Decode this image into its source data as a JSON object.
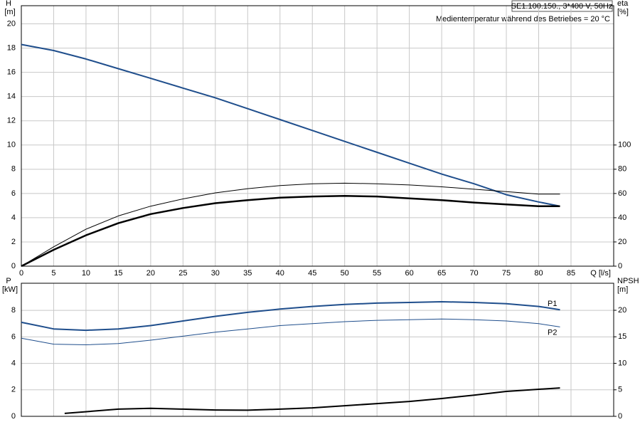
{
  "chart_data": [
    {
      "type": "line",
      "subtitle": "SE1.100.150., 3*400 V, 50Hz",
      "annotation": "Medientemperatur während des Betriebes = 20 °C",
      "y_label": "H",
      "y_unit": "[m]",
      "y2_label": "eta",
      "y2_unit": "[%]",
      "x_label": "Q [l/s]",
      "xlim": [
        0,
        91.6
      ],
      "xticks": [
        0,
        5,
        10,
        15,
        20,
        25,
        30,
        35,
        40,
        45,
        50,
        55,
        60,
        65,
        70,
        75,
        80,
        85
      ],
      "show_xtick_labels": true,
      "ylim": [
        0,
        21.5
      ],
      "yticks": [
        0,
        2,
        4,
        6,
        8,
        10,
        12,
        14,
        16,
        18,
        20
      ],
      "y2lim": [
        0,
        215
      ],
      "y2ticks": [
        0,
        20,
        40,
        60,
        80,
        100
      ],
      "grid": true,
      "x": [
        0,
        5,
        10,
        15,
        20,
        25,
        30,
        35,
        40,
        45,
        50,
        55,
        60,
        65,
        70,
        75,
        80,
        83.3
      ],
      "series": [
        {
          "color": "#1f4e8c",
          "line_width": 2,
          "values": [
            18.3,
            17.8,
            17.1,
            16.3,
            15.5,
            14.7,
            13.9,
            13.0,
            12.1,
            11.2,
            10.3,
            9.4,
            8.5,
            7.6,
            6.8,
            5.9,
            5.3,
            4.95
          ]
        },
        {
          "color": "#000000",
          "line_width": 1,
          "axis": "y2",
          "values": [
            0,
            16,
            30.5,
            41.5,
            49.5,
            55.5,
            60.5,
            64,
            66.5,
            68,
            68.5,
            68,
            67,
            65.5,
            63.5,
            61.5,
            59.5,
            59.5
          ]
        },
        {
          "color": "#000000",
          "line_width": 2.5,
          "axis": "y2",
          "values": [
            0,
            13.5,
            25.5,
            35.5,
            43,
            48,
            52,
            54.5,
            56.5,
            57.5,
            58,
            57.5,
            56,
            54.5,
            52.5,
            51,
            49.5,
            49.5
          ]
        }
      ]
    },
    {
      "type": "line",
      "y_label": "P",
      "y_unit": "[kW]",
      "y2_label": "NPSH",
      "y2_unit": "[m]",
      "xlim": [
        0,
        91.6
      ],
      "xticks": [
        0,
        5,
        10,
        15,
        20,
        25,
        30,
        35,
        40,
        45,
        50,
        55,
        60,
        65,
        70,
        75,
        80,
        85
      ],
      "show_xtick_labels": false,
      "ylim": [
        0,
        10.05
      ],
      "yticks": [
        0,
        2,
        4,
        6,
        8
      ],
      "y2lim": [
        0,
        25.1
      ],
      "y2ticks": [
        0,
        5,
        10,
        15,
        20
      ],
      "grid": true,
      "x": [
        0,
        5,
        10,
        15,
        20,
        25,
        30,
        35,
        40,
        45,
        50,
        55,
        60,
        65,
        70,
        75,
        80,
        83.3
      ],
      "series": [
        {
          "name": "P1",
          "color": "#1f4e8c",
          "line_width": 2,
          "values": [
            7.1,
            6.6,
            6.5,
            6.6,
            6.85,
            7.2,
            7.55,
            7.85,
            8.1,
            8.3,
            8.45,
            8.55,
            8.6,
            8.65,
            8.6,
            8.5,
            8.3,
            8.05
          ]
        },
        {
          "name": "P2",
          "color": "#1f4e8c",
          "line_width": 1,
          "values": [
            5.9,
            5.45,
            5.4,
            5.5,
            5.75,
            6.05,
            6.35,
            6.6,
            6.85,
            7.0,
            7.15,
            7.25,
            7.3,
            7.35,
            7.3,
            7.2,
            7.0,
            6.75
          ]
        },
        {
          "color": "#000000",
          "line_width": 2,
          "axis": "y2",
          "x": [
            6.7,
            15,
            20,
            25,
            30,
            35,
            40,
            45,
            50,
            55,
            60,
            65,
            70,
            75,
            80,
            83.3
          ],
          "values": [
            0.55,
            1.35,
            1.5,
            1.35,
            1.2,
            1.15,
            1.35,
            1.6,
            2.0,
            2.4,
            2.8,
            3.35,
            4.0,
            4.7,
            5.1,
            5.35
          ]
        }
      ]
    }
  ]
}
